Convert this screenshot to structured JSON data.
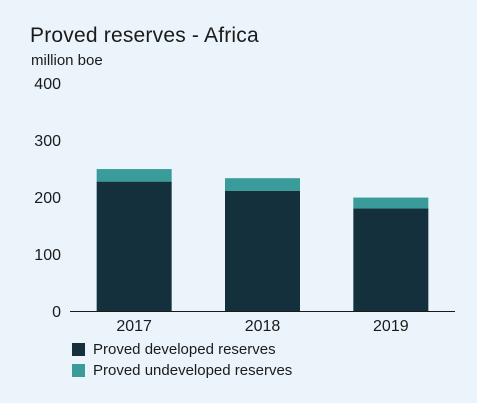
{
  "chart_data": {
    "type": "bar",
    "stacked": true,
    "title": "Proved reserves - Africa",
    "subtitle": "million boe",
    "categories": [
      "2017",
      "2018",
      "2019"
    ],
    "series": [
      {
        "name": "Proved developed reserves",
        "color": "#14303d",
        "values": [
          227,
          211,
          180
        ]
      },
      {
        "name": "Proved undeveloped reserves",
        "color": "#3a9b9b",
        "values": [
          22,
          22,
          19
        ]
      }
    ],
    "ylim": [
      0,
      400
    ],
    "yticks": [
      0,
      100,
      200,
      300,
      400
    ],
    "grid": false,
    "legend_position": "bottom-left"
  }
}
